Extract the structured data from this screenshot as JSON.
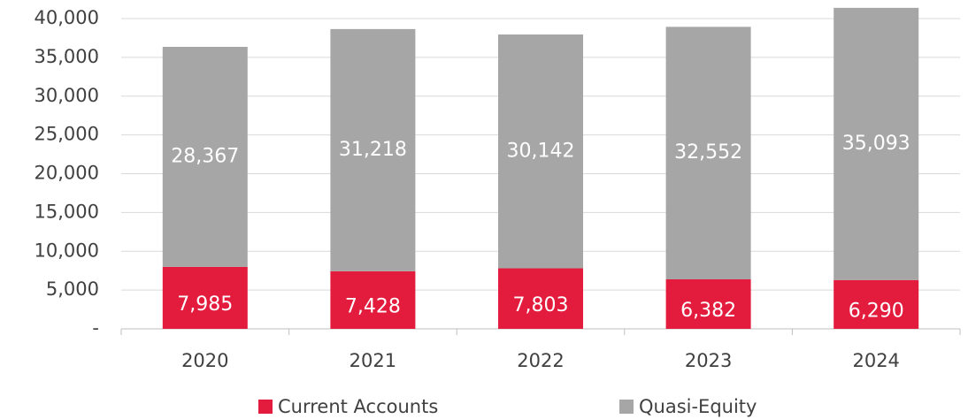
{
  "chart_data": {
    "type": "stacked_bar",
    "categories": [
      "2020",
      "2021",
      "2022",
      "2023",
      "2024"
    ],
    "series": [
      {
        "name": "Current Accounts",
        "color": "#e31c3d",
        "values": [
          7985,
          7428,
          7803,
          6382,
          6290
        ],
        "value_labels": [
          "7,985",
          "7,428",
          "7,803",
          "6,382",
          "6,290"
        ]
      },
      {
        "name": "Quasi-Equity",
        "color": "#a6a6a6",
        "values": [
          28367,
          31218,
          30142,
          32552,
          35093
        ],
        "value_labels": [
          "28,367",
          "31,218",
          "30,142",
          "32,552",
          "35,093"
        ]
      }
    ],
    "ylim": [
      0,
      40000
    ],
    "yticks": [
      {
        "value": 0,
        "label": "-"
      },
      {
        "value": 5000,
        "label": "5,000"
      },
      {
        "value": 10000,
        "label": "10,000"
      },
      {
        "value": 15000,
        "label": "15,000"
      },
      {
        "value": 20000,
        "label": "20,000"
      },
      {
        "value": 25000,
        "label": "25,000"
      },
      {
        "value": 30000,
        "label": "30,000"
      },
      {
        "value": 35000,
        "label": "35,000"
      },
      {
        "value": 40000,
        "label": "40,000"
      }
    ],
    "grid": true,
    "legend": "bottom"
  }
}
